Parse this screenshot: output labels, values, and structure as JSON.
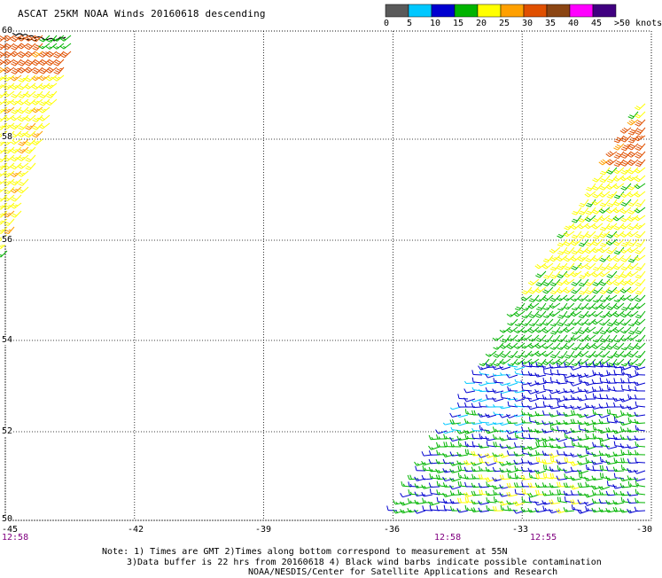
{
  "title": "ASCAT 25KM NOAA Winds 20160618 descending",
  "color_scale": {
    "colors": [
      "#5a5a5a",
      "#00c8ff",
      "#0000d0",
      "#00b400",
      "#ffff00",
      "#ffa000",
      "#e05000",
      "#8b4513",
      "#ff00ff",
      "#400080"
    ],
    "labels": [
      "0",
      "5",
      "10",
      "15",
      "20",
      "25",
      "30",
      "35",
      "40",
      "45",
      ">50 knots"
    ],
    "unit": "knots"
  },
  "axes": {
    "lat_labels": [
      "60",
      "58",
      "56",
      "54",
      "52",
      "50"
    ],
    "lon_labels": [
      "-45",
      "-42",
      "-39",
      "-36",
      "-33",
      "-30"
    ]
  },
  "pass_times": [
    "12:58",
    "12:58",
    "12:55"
  ],
  "notes": [
    "Note: 1) Times are GMT 2)Times along bottom correspond to measurement at 55N",
    "3)Data buffer is 22 hrs from 20160618 4) Black wind barbs indicate possible contamination",
    "NOAA/NESDIS/Center for Satellite Applications and Research"
  ],
  "wind_regions": [
    {
      "swath": "west",
      "lat_range": [
        55.5,
        60
      ],
      "speed_knots": 23,
      "color": "yellow-orange",
      "direction": "southwesterly"
    },
    {
      "swath": "west",
      "lat_range": [
        59.2,
        60
      ],
      "speed_knots": 31,
      "color": "orange",
      "direction": "southwesterly"
    },
    {
      "swath": "east",
      "lat_range": [
        57.5,
        58.5
      ],
      "speed_knots": 31,
      "color": "orange",
      "direction": "southwesterly"
    },
    {
      "swath": "east",
      "lat_range": [
        55,
        57.5
      ],
      "speed_knots": 21,
      "color": "yellow",
      "direction": "southwesterly"
    },
    {
      "swath": "east",
      "lat_range": [
        53.5,
        55
      ],
      "speed_knots": 17,
      "color": "green",
      "direction": "southwesterly"
    },
    {
      "swath": "east",
      "lat_range": [
        52.5,
        53.5
      ],
      "speed_knots": 12,
      "color": "blue",
      "direction": "westerly"
    },
    {
      "swath": "east",
      "lat_range": [
        50,
        52.5
      ],
      "speed_knots": 16,
      "color": "green",
      "direction": "westerly"
    }
  ]
}
